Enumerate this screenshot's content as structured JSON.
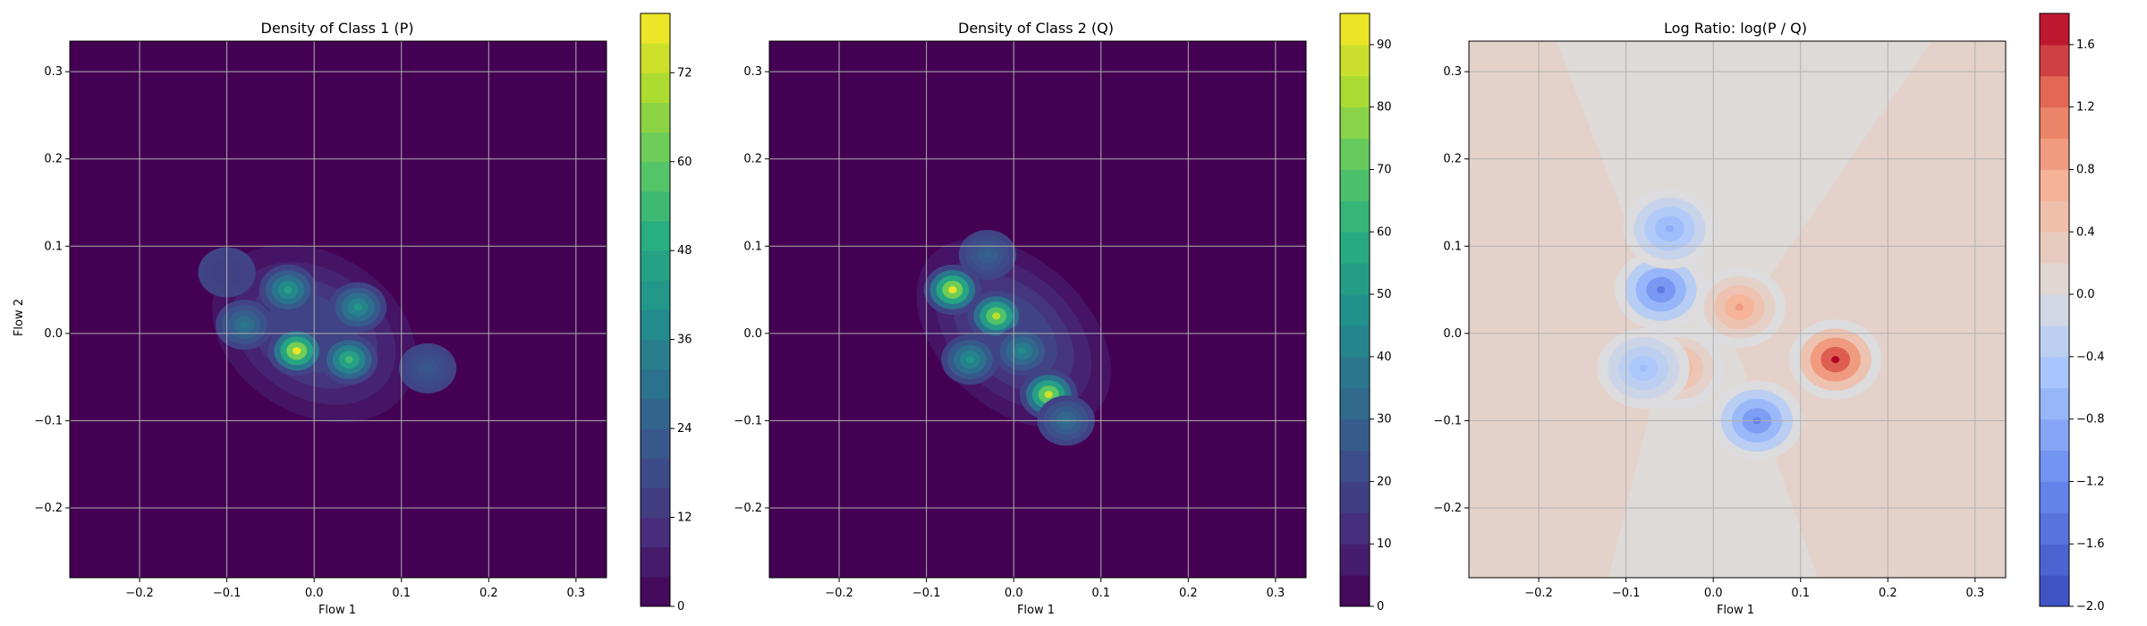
{
  "chart_data": [
    {
      "type": "heatmap",
      "title": "Density of Class 1 (P)",
      "xlabel": "Flow 1",
      "ylabel": "Flow 2",
      "xlim": [
        -0.28,
        0.335
      ],
      "ylim": [
        -0.28,
        0.335
      ],
      "x_ticks": [
        -0.2,
        -0.1,
        0.0,
        0.1,
        0.2,
        0.3
      ],
      "y_ticks": [
        -0.2,
        -0.1,
        0.0,
        0.1,
        0.2,
        0.3
      ],
      "x_tick_labels": [
        "−0.2",
        "−0.1",
        "0.0",
        "0.1",
        "0.2",
        "0.3"
      ],
      "y_tick_labels": [
        "−0.2",
        "−0.1",
        "0.0",
        "0.1",
        "0.2",
        "0.3"
      ],
      "grid": true,
      "colormap": "viridis",
      "background_color": "#440154",
      "colorbar": {
        "min": 0,
        "max": 80,
        "ticks": [
          0,
          12,
          24,
          36,
          48,
          60,
          72
        ],
        "tick_labels": [
          "0",
          "12",
          "24",
          "36",
          "48",
          "60",
          "72"
        ],
        "levels": 20
      },
      "peaks": [
        {
          "x": -0.02,
          "y": -0.02,
          "value": 78
        },
        {
          "x": 0.04,
          "y": -0.03,
          "value": 55
        },
        {
          "x": -0.03,
          "y": 0.05,
          "value": 45
        },
        {
          "x": 0.05,
          "y": 0.03,
          "value": 42
        },
        {
          "x": -0.08,
          "y": 0.01,
          "value": 32
        },
        {
          "x": 0.13,
          "y": -0.04,
          "value": 22
        },
        {
          "x": -0.1,
          "y": 0.07,
          "value": 15
        }
      ]
    },
    {
      "type": "heatmap",
      "title": "Density of Class 2 (Q)",
      "xlabel": "Flow 1",
      "ylabel": "",
      "xlim": [
        -0.28,
        0.335
      ],
      "ylim": [
        -0.28,
        0.335
      ],
      "x_ticks": [
        -0.2,
        -0.1,
        0.0,
        0.1,
        0.2,
        0.3
      ],
      "y_ticks": [
        -0.2,
        -0.1,
        0.0,
        0.1,
        0.2,
        0.3
      ],
      "x_tick_labels": [
        "−0.2",
        "−0.1",
        "0.0",
        "0.1",
        "0.2",
        "0.3"
      ],
      "y_tick_labels": [
        "−0.2",
        "−0.1",
        "0.0",
        "0.1",
        "0.2",
        "0.3"
      ],
      "grid": true,
      "colormap": "viridis",
      "background_color": "#440154",
      "colorbar": {
        "min": 0,
        "max": 95,
        "ticks": [
          0,
          10,
          20,
          30,
          40,
          50,
          60,
          70,
          80,
          90
        ],
        "tick_labels": [
          "0",
          "10",
          "20",
          "30",
          "40",
          "50",
          "60",
          "70",
          "80",
          "90"
        ],
        "levels": 19
      },
      "peaks": [
        {
          "x": -0.07,
          "y": 0.05,
          "value": 92
        },
        {
          "x": -0.02,
          "y": 0.02,
          "value": 85
        },
        {
          "x": 0.04,
          "y": -0.07,
          "value": 88
        },
        {
          "x": -0.05,
          "y": -0.03,
          "value": 50
        },
        {
          "x": 0.01,
          "y": -0.02,
          "value": 45
        },
        {
          "x": 0.06,
          "y": -0.1,
          "value": 35
        },
        {
          "x": -0.03,
          "y": 0.09,
          "value": 30
        }
      ]
    },
    {
      "type": "heatmap",
      "title": "Log Ratio: log(P / Q)",
      "xlabel": "Flow 1",
      "ylabel": "",
      "xlim": [
        -0.28,
        0.335
      ],
      "ylim": [
        -0.28,
        0.335
      ],
      "x_ticks": [
        -0.2,
        -0.1,
        0.0,
        0.1,
        0.2,
        0.3
      ],
      "y_ticks": [
        -0.2,
        -0.1,
        0.0,
        0.1,
        0.2,
        0.3
      ],
      "x_tick_labels": [
        "−0.2",
        "−0.1",
        "0.0",
        "0.1",
        "0.2",
        "0.3"
      ],
      "y_tick_labels": [
        "−0.2",
        "−0.1",
        "0.0",
        "0.1",
        "0.2",
        "0.3"
      ],
      "grid": true,
      "colormap": "coolwarm",
      "colorbar": {
        "min": -2.0,
        "max": 1.8,
        "ticks": [
          -2.0,
          -1.6,
          -1.2,
          -0.8,
          -0.4,
          0.0,
          0.4,
          0.8,
          1.2,
          1.6
        ],
        "tick_labels": [
          "−2.0",
          "−1.6",
          "−1.2",
          "−0.8",
          "−0.4",
          "0.0",
          "0.4",
          "0.8",
          "1.2",
          "1.6"
        ],
        "levels": 19
      },
      "peaks": [
        {
          "x": 0.14,
          "y": -0.03,
          "value": 1.8
        },
        {
          "x": 0.03,
          "y": 0.03,
          "value": 0.9
        },
        {
          "x": -0.04,
          "y": -0.04,
          "value": 0.8
        },
        {
          "x": -0.06,
          "y": 0.05,
          "value": -1.4
        },
        {
          "x": 0.05,
          "y": -0.1,
          "value": -1.3
        },
        {
          "x": -0.05,
          "y": 0.12,
          "value": -0.8
        },
        {
          "x": -0.08,
          "y": -0.04,
          "value": -0.6
        }
      ]
    }
  ]
}
